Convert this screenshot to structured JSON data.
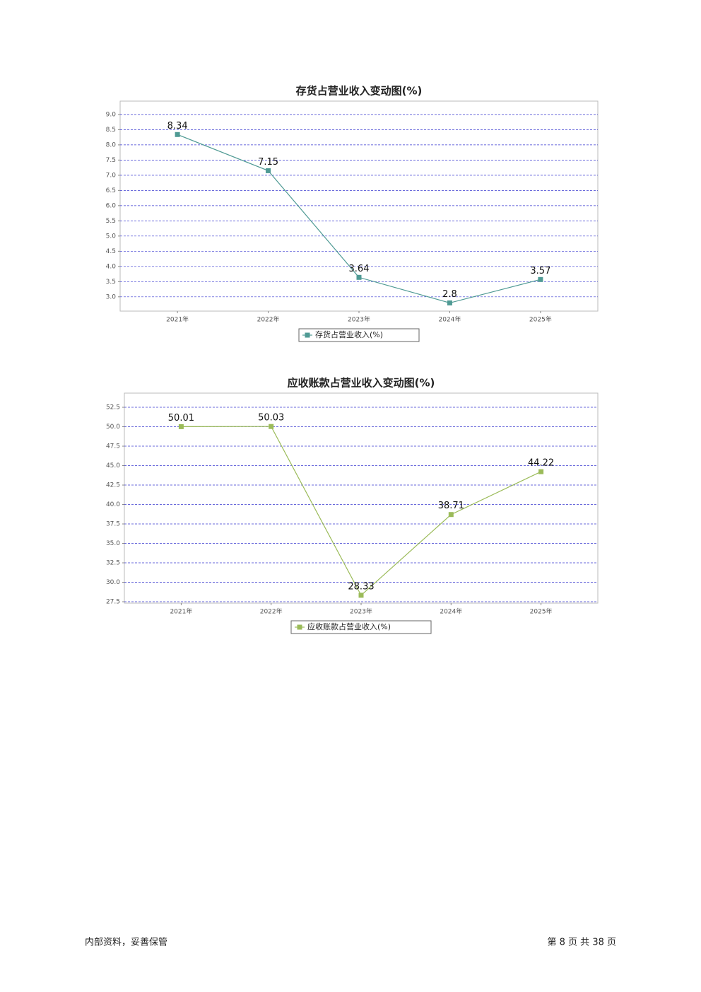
{
  "chart_data": [
    {
      "type": "line",
      "title": "存货占营业收入变动图(%)",
      "categories": [
        "2021年",
        "2022年",
        "2023年",
        "2024年",
        "2025年"
      ],
      "series": [
        {
          "name": "存货占营业收入(%)",
          "color": "#4f9a94",
          "values": [
            8.34,
            7.15,
            3.64,
            2.8,
            3.57
          ]
        }
      ],
      "ylim": [
        2.53,
        9.44
      ],
      "yticks": [
        {
          "value": 3,
          "label": "3.0"
        },
        3.5,
        {
          "value": 4,
          "label": "4.0"
        },
        4.5,
        {
          "value": 5,
          "label": "5.0"
        },
        5.5,
        {
          "value": 6,
          "label": "6.0"
        },
        6.5,
        {
          "value": 7,
          "label": "7.0"
        },
        7.5,
        {
          "value": 8,
          "label": "8.0"
        },
        8.5,
        {
          "value": 9,
          "label": "9.0"
        }
      ],
      "grid": true
    },
    {
      "type": "line",
      "title": "应收账款占营业收入变动图(%)",
      "categories": [
        "2021年",
        "2022年",
        "2023年",
        "2024年",
        "2025年"
      ],
      "series": [
        {
          "name": "应收账款占营业收入(%)",
          "color": "#9bbb59",
          "values": [
            50.01,
            50.03,
            28.33,
            38.71,
            44.22
          ]
        }
      ],
      "ylim": [
        27.32,
        54.32
      ],
      "yticks": [
        27.5,
        {
          "value": 30,
          "label": "30.0"
        },
        32.5,
        {
          "value": 35,
          "label": "35.0"
        },
        37.5,
        {
          "value": 40,
          "label": "40.0"
        },
        42.5,
        {
          "value": 45,
          "label": "45.0"
        },
        47.5,
        {
          "value": 50,
          "label": "50.0"
        },
        52.5
      ],
      "grid": true
    }
  ],
  "footer": {
    "left": "内部资料，妥善保管",
    "right": "第 8 页 共 38 页"
  }
}
